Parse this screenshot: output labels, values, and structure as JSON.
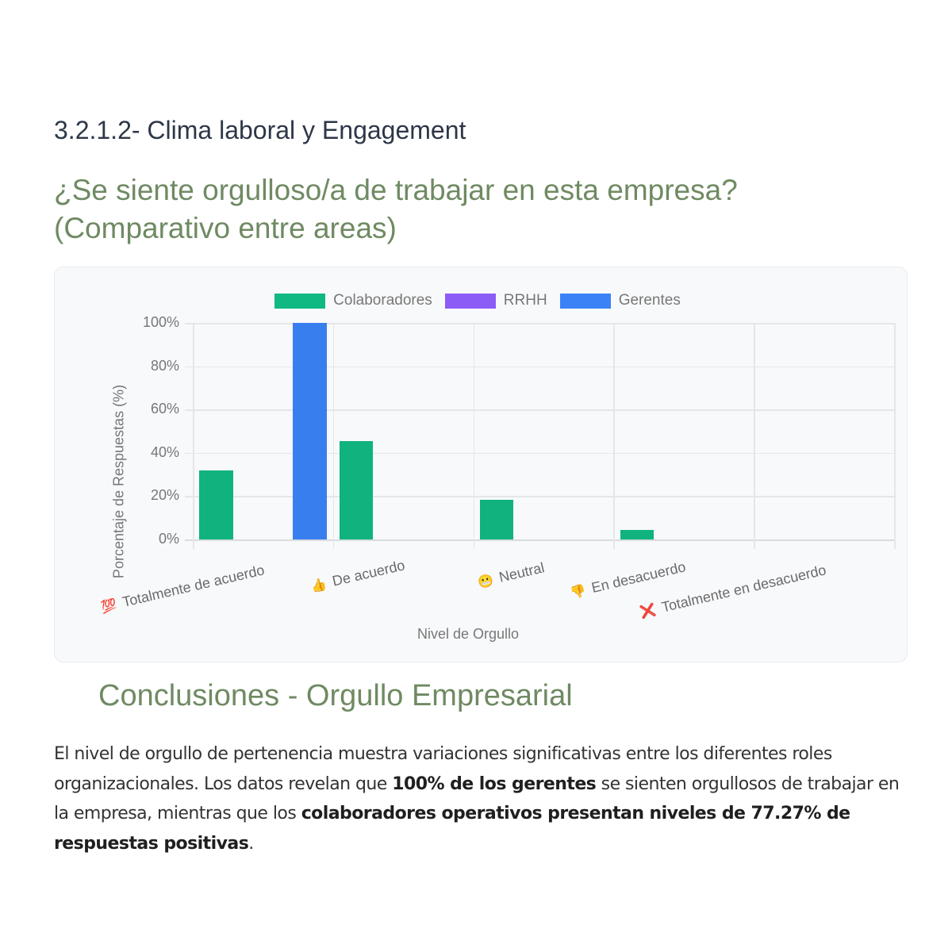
{
  "section": {
    "title": "3.2.1.2- Clima laboral y Engagement"
  },
  "question": {
    "title": "¿Se siente orgulloso/a de trabajar en esta empresa? (Comparativo entre areas)"
  },
  "legend": {
    "items": [
      {
        "label": "Colaboradores",
        "color": "#10b981"
      },
      {
        "label": "RRHH",
        "color": "#8b5cf6"
      },
      {
        "label": "Gerentes",
        "color": "#3b82f6"
      }
    ]
  },
  "chart_data": {
    "type": "bar",
    "title": "¿Se siente orgulloso/a de trabajar en esta empresa? (Comparativo entre areas)",
    "xlabel": "Nivel de Orgullo",
    "ylabel": "Porcentaje de Respuestas (%)",
    "ylim": [
      0,
      100
    ],
    "y_ticks": [
      "0%",
      "20%",
      "40%",
      "60%",
      "80%",
      "100%"
    ],
    "grid": true,
    "legend_position": "top",
    "categories": [
      {
        "emoji": "💯",
        "label": "Totalmente de acuerdo"
      },
      {
        "emoji": "👍",
        "label": "De acuerdo"
      },
      {
        "emoji": "😬",
        "label": "Neutral"
      },
      {
        "emoji": "👎",
        "label": "En desacuerdo"
      },
      {
        "emoji": "❌",
        "label": "Totalmente en desacuerdo"
      }
    ],
    "series": [
      {
        "name": "Colaboradores",
        "color": "#10b981",
        "values": [
          31.82,
          45.45,
          18.18,
          4.55,
          0
        ]
      },
      {
        "name": "RRHH",
        "color": "#8b5cf6",
        "values": [
          0,
          0,
          0,
          0,
          0
        ]
      },
      {
        "name": "Gerentes",
        "color": "#3b82f6",
        "values": [
          100,
          0,
          0,
          0,
          0
        ]
      }
    ]
  },
  "conclusion": {
    "title": "Conclusiones - Orgullo Empresarial",
    "p1": "El nivel de orgullo de pertenencia muestra variaciones significativas entre los diferentes roles organizacionales. Los datos revelan que ",
    "b1": "100% de los gerentes",
    "p2": " se sienten orgullosos de trabajar en la empresa, mientras que los ",
    "b2": "colaboradores operativos presentan niveles de 77.27% de respuestas positivas",
    "p3": "."
  }
}
